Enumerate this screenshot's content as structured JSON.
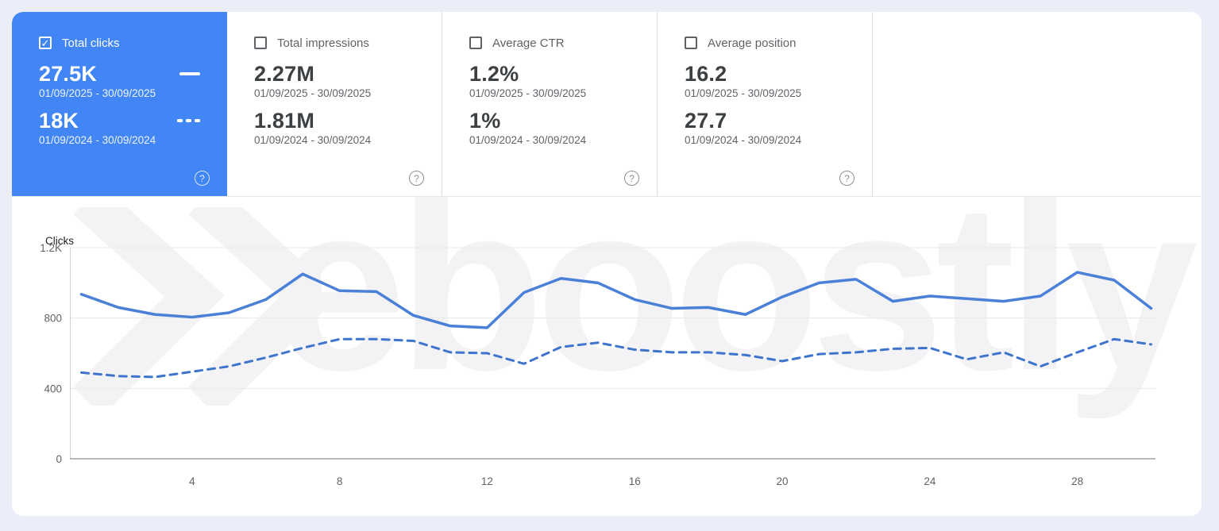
{
  "colors": {
    "page_background": "#ebeef8",
    "panel_background": "#ffffff",
    "selected_card_blue": "#4285f4",
    "line_solid": "#4a80d8",
    "line_dashed": "#3f74cc",
    "watermark": "#f3f3f6"
  },
  "help_icon": "?",
  "watermark": {
    "text": "eboostly"
  },
  "cards": [
    {
      "label": "Total clicks",
      "checked": true,
      "current": {
        "value": "27.5K",
        "range": "01/09/2025 - 30/09/2025"
      },
      "previous": {
        "value": "18K",
        "range": "01/09/2024 - 30/09/2024"
      }
    },
    {
      "label": "Total impressions",
      "checked": false,
      "current": {
        "value": "2.27M",
        "range": "01/09/2025 - 30/09/2025"
      },
      "previous": {
        "value": "1.81M",
        "range": "01/09/2024 - 30/09/2024"
      }
    },
    {
      "label": "Average CTR",
      "checked": false,
      "current": {
        "value": "1.2%",
        "range": "01/09/2025 - 30/09/2025"
      },
      "previous": {
        "value": "1%",
        "range": "01/09/2024 - 30/09/2024"
      }
    },
    {
      "label": "Average position",
      "checked": false,
      "current": {
        "value": "16.2",
        "range": "01/09/2025 - 30/09/2025"
      },
      "previous": {
        "value": "27.7",
        "range": "01/09/2024 - 30/09/2024"
      }
    }
  ],
  "chart_data": {
    "type": "line",
    "ylabel": "Clicks",
    "x_unit": "day of month",
    "x": [
      1,
      2,
      3,
      4,
      5,
      6,
      7,
      8,
      9,
      10,
      11,
      12,
      13,
      14,
      15,
      16,
      17,
      18,
      19,
      20,
      21,
      22,
      23,
      24,
      25,
      26,
      27,
      28,
      29,
      30
    ],
    "xticks": [
      4,
      8,
      12,
      16,
      20,
      24,
      28
    ],
    "yticks": [
      {
        "value": 0,
        "label": "0"
      },
      {
        "value": 400,
        "label": "400"
      },
      {
        "value": 800,
        "label": "800"
      },
      {
        "value": 1200,
        "label": "1.2K"
      }
    ],
    "ylim": [
      0,
      1200
    ],
    "grid": true,
    "legend_position": "none",
    "series": [
      {
        "name": "01/09/2025 - 30/09/2025",
        "style": "solid",
        "color": "#4a80d8",
        "values": [
          935,
          860,
          820,
          805,
          830,
          905,
          1050,
          955,
          950,
          815,
          755,
          745,
          945,
          1025,
          1000,
          905,
          855,
          860,
          820,
          920,
          1000,
          1020,
          895,
          925,
          910,
          895,
          925,
          1060,
          1015,
          855
        ]
      },
      {
        "name": "01/09/2024 - 30/09/2024",
        "style": "dashed",
        "color": "#3f74cc",
        "values": [
          490,
          470,
          465,
          495,
          525,
          575,
          630,
          680,
          680,
          670,
          605,
          600,
          540,
          635,
          660,
          620,
          605,
          605,
          590,
          555,
          595,
          605,
          625,
          630,
          565,
          605,
          525,
          605,
          680,
          650
        ]
      }
    ]
  }
}
